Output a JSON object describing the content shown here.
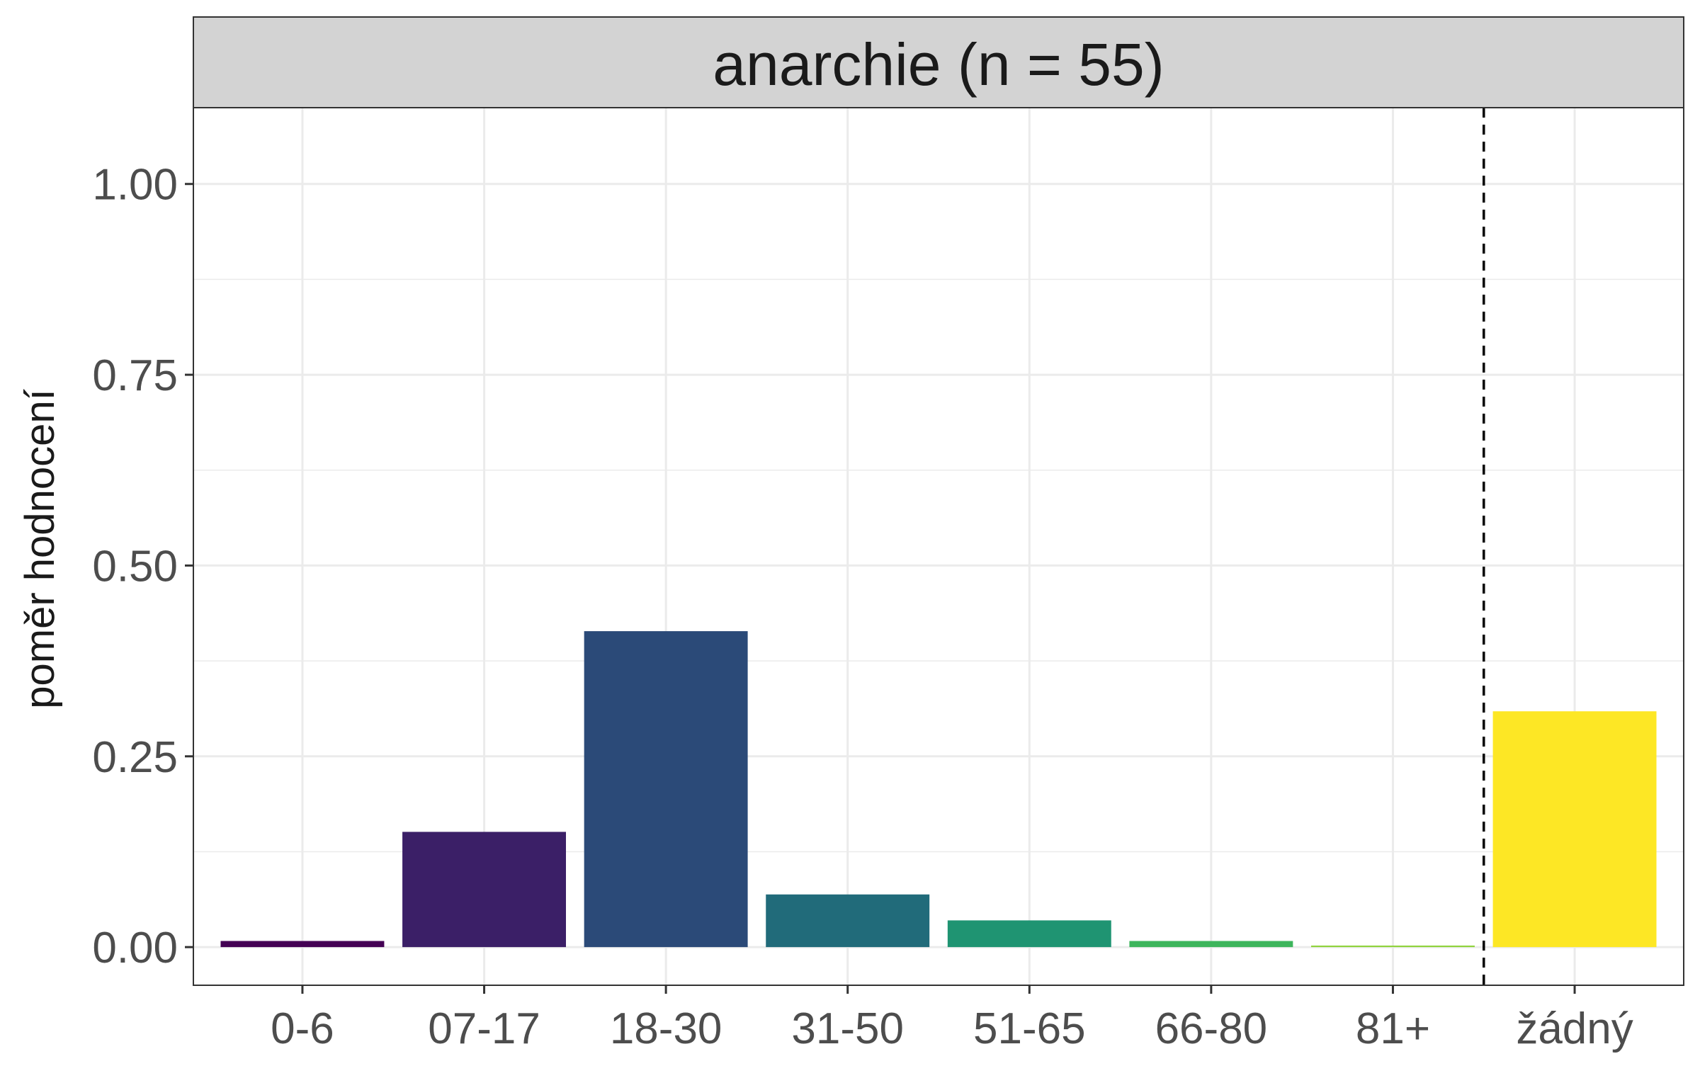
{
  "chart_data": {
    "type": "bar",
    "title": "anarchie (n = 55)",
    "ylabel": "poměr hodnocení",
    "xlabel": "",
    "categories": [
      "0-6",
      "07-17",
      "18-30",
      "31-50",
      "51-65",
      "66-80",
      "81+",
      "žádný"
    ],
    "values": [
      0.008,
      0.151,
      0.414,
      0.069,
      0.035,
      0.008,
      0.002,
      0.309
    ],
    "colors": [
      "#440154",
      "#3B1F67",
      "#2B4A78",
      "#216B7A",
      "#1F9472",
      "#3DB55C",
      "#8FD33C",
      "#FDE725"
    ],
    "ylim": [
      -0.05,
      1.1
    ],
    "yticks": [
      0.0,
      0.25,
      0.5,
      0.75,
      1.0
    ],
    "ytick_labels": [
      "0.00",
      "0.25",
      "0.50",
      "0.75",
      "1.00"
    ],
    "grid": true,
    "separator": {
      "type": "dashed-vertical-line",
      "between": [
        "81+",
        "žádný"
      ]
    }
  }
}
